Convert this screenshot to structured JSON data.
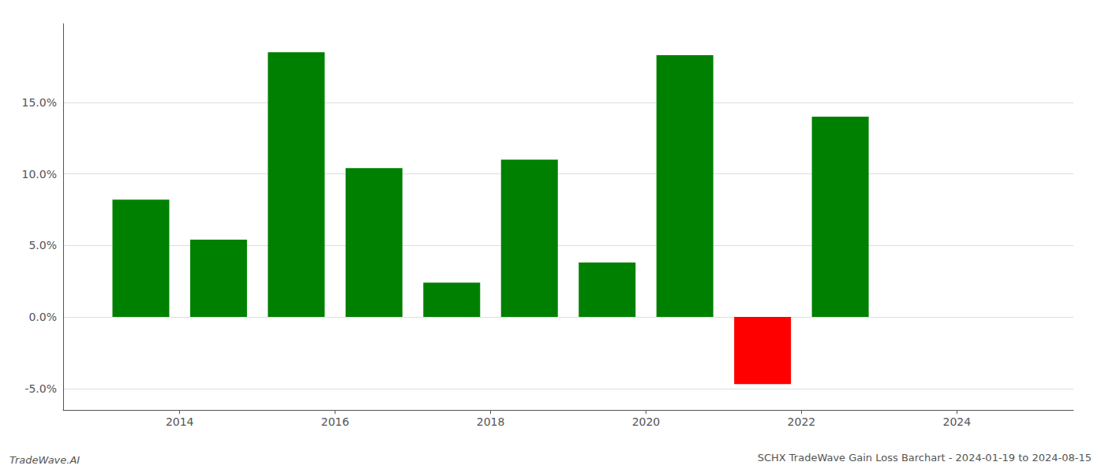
{
  "chart_data": {
    "type": "bar",
    "title": "SCHX TradeWave Gain Loss Barchart - 2024-01-19 to 2024-08-15",
    "annotations": [
      "TradeWave.AI"
    ],
    "x": [
      2013.5,
      2014.5,
      2015.5,
      2016.5,
      2017.5,
      2018.5,
      2019.5,
      2020.5,
      2021.5,
      2022.5
    ],
    "values": [
      0.082,
      0.054,
      0.185,
      0.104,
      0.024,
      0.11,
      0.038,
      0.183,
      -0.047,
      0.14
    ],
    "colors": [
      "#008000",
      "#008000",
      "#008000",
      "#008000",
      "#008000",
      "#008000",
      "#008000",
      "#008000",
      "#ff0000",
      "#008000"
    ],
    "xlim": [
      2012.5,
      2025.5
    ],
    "xticks": [
      2014,
      2016,
      2018,
      2020,
      2022,
      2024
    ],
    "ylim": [
      -0.065,
      0.205
    ],
    "yticks": [
      {
        "value": -0.05,
        "label": "-5.0%"
      },
      {
        "value": 0.0,
        "label": "0.0%"
      },
      {
        "value": 0.05,
        "label": "5.0%"
      },
      {
        "value": 0.1,
        "label": "10.0%"
      },
      {
        "value": 0.15,
        "label": "15.0%"
      }
    ],
    "grid": true
  }
}
